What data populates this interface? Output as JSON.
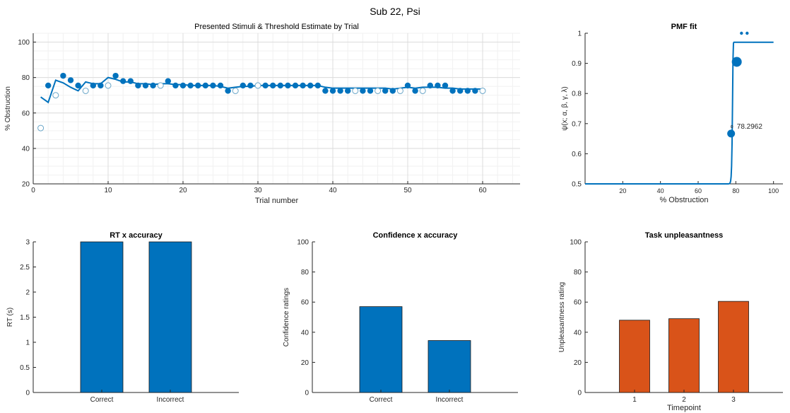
{
  "figure": {
    "suptitle": "Sub 22, Psi"
  },
  "colors": {
    "blue": "#0072BD",
    "orange": "#D95319",
    "hollow_edge": "#6aa6c8",
    "axis": "#262626",
    "grid": "#ececec"
  },
  "chart_data": [
    {
      "id": "trials",
      "type": "scatter",
      "title": "Presented Stimuli & Threshold Estimate by Trial",
      "xlabel": "Trial number",
      "ylabel": "% Obstruction",
      "xlim": [
        0,
        65
      ],
      "ylim": [
        20,
        105
      ],
      "xticks": [
        0,
        10,
        20,
        30,
        40,
        50,
        60
      ],
      "yticks": [
        20,
        40,
        60,
        80,
        100
      ],
      "grid": true,
      "minor_grid": true,
      "series": [
        {
          "marker": "filled",
          "x": [
            2,
            4,
            5,
            6,
            8,
            9,
            11,
            12,
            13,
            14,
            15,
            16,
            18,
            19,
            20,
            21,
            22,
            23,
            24,
            25,
            26,
            28,
            29,
            31,
            32,
            33,
            34,
            35,
            36,
            37,
            38,
            39,
            40,
            41,
            42,
            44,
            45,
            47,
            48,
            50,
            51,
            53,
            54,
            55,
            56,
            57,
            58,
            59
          ],
          "y": [
            75.5,
            81,
            78.5,
            75.5,
            75.5,
            75.5,
            81,
            78,
            78,
            75.5,
            75.5,
            75.5,
            78,
            75.5,
            75.5,
            75.5,
            75.5,
            75.5,
            75.5,
            75.5,
            72.5,
            75.5,
            75.5,
            75.5,
            75.5,
            75.5,
            75.5,
            75.5,
            75.5,
            75.5,
            75.5,
            72.5,
            72.5,
            72.5,
            72.5,
            72.5,
            72.5,
            72.5,
            72.5,
            75.5,
            72.5,
            75.5,
            75.5,
            75.5,
            72.5,
            72.5,
            72.5,
            72.5
          ]
        },
        {
          "marker": "open",
          "x": [
            1,
            3,
            7,
            10,
            17,
            27,
            30,
            43,
            46,
            49,
            52,
            60
          ],
          "y": [
            51.5,
            70,
            72.5,
            75.5,
            75.5,
            72.5,
            75.5,
            72.5,
            72.5,
            72.5,
            72.5,
            72.5
          ]
        },
        {
          "marker": "line",
          "x": [
            1,
            2,
            3,
            4,
            5,
            6,
            7,
            8,
            9,
            10,
            11,
            12,
            13,
            14,
            15,
            16,
            17,
            18,
            19,
            20,
            21,
            22,
            23,
            24,
            25,
            26,
            27,
            28,
            29,
            30,
            31,
            32,
            33,
            34,
            35,
            36,
            37,
            38,
            39,
            40,
            41,
            42,
            43,
            44,
            45,
            46,
            47,
            48,
            49,
            50,
            51,
            52,
            53,
            54,
            55,
            56,
            57,
            58,
            59,
            60
          ],
          "y": [
            69,
            66,
            78.5,
            77,
            74.5,
            72.5,
            77.5,
            76.5,
            76.5,
            80,
            79,
            77.5,
            77.5,
            76.5,
            76.5,
            76,
            76.5,
            76.5,
            76,
            76,
            75.5,
            75.5,
            75.5,
            75.5,
            75,
            74,
            74.5,
            75,
            75,
            75.5,
            75.5,
            75.5,
            75.5,
            75.5,
            75.5,
            75.5,
            75.5,
            75.5,
            74.5,
            74,
            74,
            74,
            74,
            74,
            74,
            74,
            74,
            73.5,
            74,
            74.5,
            74,
            74.5,
            74.5,
            74.5,
            74,
            74,
            73.5,
            73.5,
            73.5,
            73.5
          ]
        }
      ]
    },
    {
      "id": "pmf",
      "type": "line",
      "title": "PMF fit",
      "xlabel": "% Obstruction",
      "ylabel": "ψ(x; α, β, γ, λ)",
      "xlim": [
        0,
        105
      ],
      "ylim": [
        0.5,
        1
      ],
      "xticks": [
        20,
        40,
        60,
        80,
        100
      ],
      "yticks": [
        0.5,
        0.6,
        0.7,
        0.8,
        0.9,
        1
      ],
      "grid": false,
      "threshold_label": "78.2962",
      "threshold": 78.2962,
      "curve": {
        "gamma": 0.5,
        "lambda": 0.03,
        "alpha": 78.2962,
        "beta": 1.6,
        "x_start": 0,
        "x_end": 100
      },
      "points": [
        {
          "x": 77.5,
          "y": 0.667,
          "size": "medium"
        },
        {
          "x": 80.5,
          "y": 0.905,
          "size": "large"
        },
        {
          "x": 83,
          "y": 1.0,
          "size": "small"
        },
        {
          "x": 86,
          "y": 1.0,
          "size": "small"
        }
      ]
    },
    {
      "id": "rt",
      "type": "bar",
      "title": "RT x accuracy",
      "xlabel": "",
      "ylabel": "RT (s)",
      "categories": [
        "Correct",
        "Incorrect"
      ],
      "values": [
        3,
        3
      ],
      "ylim": [
        0,
        3
      ],
      "yticks": [
        "0",
        "0.5",
        "1",
        "1.5",
        "2",
        "2.5",
        "3"
      ],
      "color": "blue"
    },
    {
      "id": "conf",
      "type": "bar",
      "title": "Confidence x accuracy",
      "xlabel": "",
      "ylabel": "Confidence ratings",
      "categories": [
        "Correct",
        "Incorrect"
      ],
      "values": [
        57,
        34.5
      ],
      "ylim": [
        0,
        100
      ],
      "yticks": [
        "0",
        "20",
        "40",
        "60",
        "80",
        "100"
      ],
      "color": "blue"
    },
    {
      "id": "unp",
      "type": "bar",
      "title": "Task unpleasantness",
      "xlabel": "Timepoint",
      "ylabel": "Unpleasantness rating",
      "categories": [
        "1",
        "2",
        "3"
      ],
      "values": [
        48,
        49,
        60.5
      ],
      "ylim": [
        0,
        100
      ],
      "yticks": [
        "0",
        "20",
        "40",
        "60",
        "80",
        "100"
      ],
      "color": "orange"
    }
  ]
}
